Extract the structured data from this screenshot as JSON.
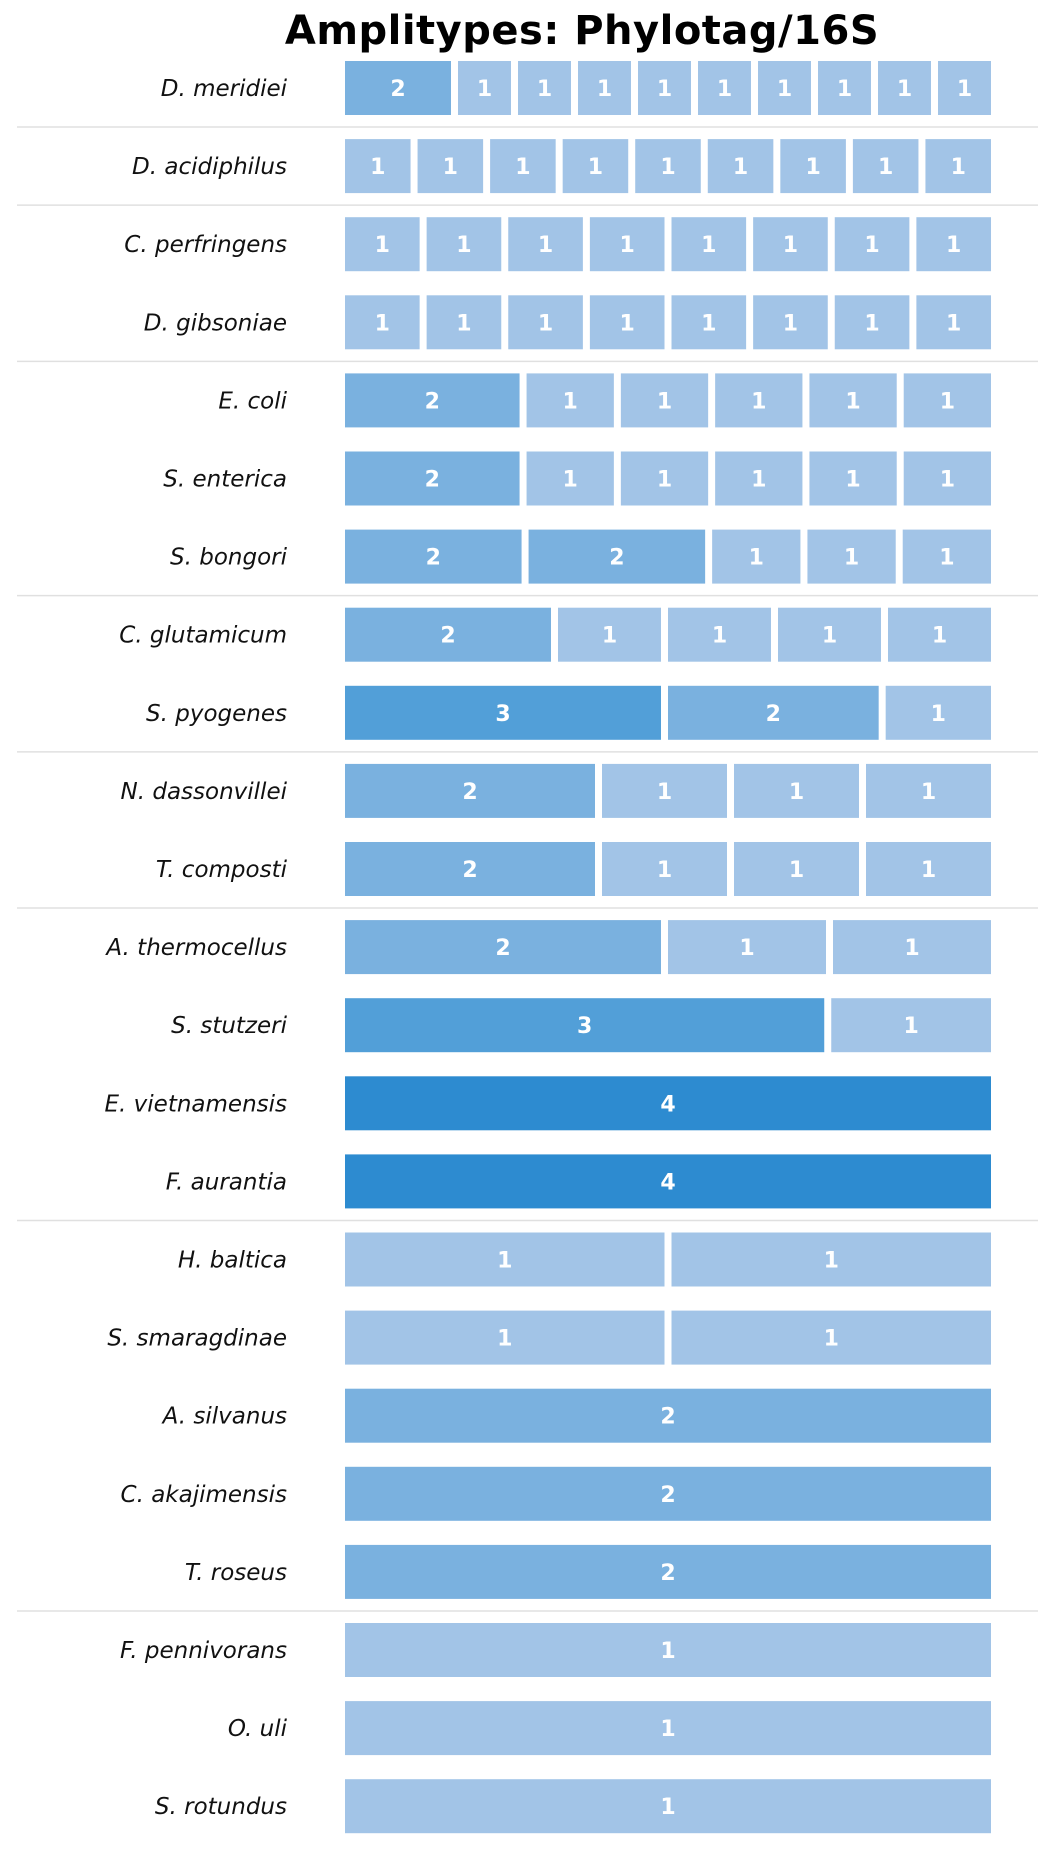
{
  "chart_data": {
    "type": "bar",
    "title": "Amplitypes: Phylotag/16S",
    "color_scale": {
      "1": "#a2c4e7",
      "2": "#7ab1df",
      "3": "#529fd8",
      "4": "#2d8bd0"
    },
    "divider_color": "#e0e0e0",
    "rows": [
      {
        "species": "D. meridiei",
        "segments": [
          2,
          1,
          1,
          1,
          1,
          1,
          1,
          1,
          1,
          1
        ],
        "divider_after": true
      },
      {
        "species": "D. acidiphilus",
        "segments": [
          1,
          1,
          1,
          1,
          1,
          1,
          1,
          1,
          1
        ],
        "divider_after": true
      },
      {
        "species": "C. perfringens",
        "segments": [
          1,
          1,
          1,
          1,
          1,
          1,
          1,
          1
        ],
        "divider_after": false
      },
      {
        "species": "D. gibsoniae",
        "segments": [
          1,
          1,
          1,
          1,
          1,
          1,
          1,
          1
        ],
        "divider_after": true
      },
      {
        "species": "E. coli",
        "segments": [
          2,
          1,
          1,
          1,
          1,
          1
        ],
        "divider_after": false
      },
      {
        "species": "S. enterica",
        "segments": [
          2,
          1,
          1,
          1,
          1,
          1
        ],
        "divider_after": false
      },
      {
        "species": "S. bongori",
        "segments": [
          2,
          2,
          1,
          1,
          1
        ],
        "divider_after": true
      },
      {
        "species": "C. glutamicum",
        "segments": [
          2,
          1,
          1,
          1,
          1
        ],
        "divider_after": false
      },
      {
        "species": "S. pyogenes",
        "segments": [
          3,
          2,
          1
        ],
        "divider_after": true
      },
      {
        "species": "N. dassonvillei",
        "segments": [
          2,
          1,
          1,
          1
        ],
        "divider_after": false
      },
      {
        "species": "T. composti",
        "segments": [
          2,
          1,
          1,
          1
        ],
        "divider_after": true
      },
      {
        "species": "A. thermocellus",
        "segments": [
          2,
          1,
          1
        ],
        "divider_after": false
      },
      {
        "species": "S. stutzeri",
        "segments": [
          3,
          1
        ],
        "divider_after": false
      },
      {
        "species": "E. vietnamensis",
        "segments": [
          4
        ],
        "divider_after": false
      },
      {
        "species": "F. aurantia",
        "segments": [
          4
        ],
        "divider_after": true
      },
      {
        "species": "H. baltica",
        "segments": [
          1,
          1
        ],
        "divider_after": false
      },
      {
        "species": "S. smaragdinae",
        "segments": [
          1,
          1
        ],
        "divider_after": false
      },
      {
        "species": "A. silvanus",
        "segments": [
          2
        ],
        "divider_after": false
      },
      {
        "species": "C. akajimensis",
        "segments": [
          2
        ],
        "divider_after": false
      },
      {
        "species": "T. roseus",
        "segments": [
          2
        ],
        "divider_after": true
      },
      {
        "species": "F. pennivorans",
        "segments": [
          1
        ],
        "divider_after": false
      },
      {
        "species": "O. uli",
        "segments": [
          1
        ],
        "divider_after": false
      },
      {
        "species": "S. rotundus",
        "segments": [
          1
        ],
        "divider_after": false
      }
    ]
  }
}
